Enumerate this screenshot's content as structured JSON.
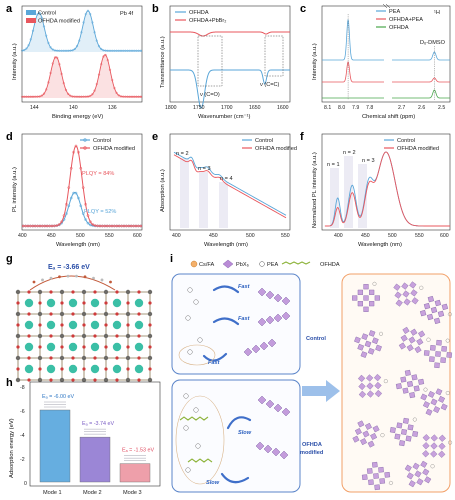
{
  "colors": {
    "control": "#5aa6d8",
    "ofhda": "#e8575e",
    "green": "#49a64b",
    "teal": "#3aa99f",
    "panel_border_blue": "#5b85c9",
    "panel_border_orange": "#f2a068",
    "purple": "#b98bd6",
    "cs": "#3bbfa6",
    "red_atom": "#cf3b3b",
    "pink_bar": "#ee9faa",
    "purple_bar": "#9b86d6",
    "blue_bar": "#66aee0",
    "arrow_blue": "#3f6fc9"
  },
  "panel_letters": {
    "a": "a",
    "b": "b",
    "c": "c",
    "d": "d",
    "e": "e",
    "f": "f",
    "g": "g",
    "h": "h",
    "i": "i"
  },
  "chart_data": [
    {
      "id": "a",
      "type": "line",
      "xlabel": "Binding energy (eV)",
      "ylabel": "Intensity (a.u.)",
      "xlim": [
        145,
        133
      ],
      "x_ticks": [
        144,
        140,
        136
      ],
      "legend": [
        "Control",
        "OFHDA modified"
      ],
      "annotation": "Pb 4f",
      "series": [
        {
          "name": "Control",
          "peaks": [
            143.3,
            138.4
          ]
        },
        {
          "name": "OFHDA modified",
          "peaks": [
            141.6,
            136.7
          ]
        }
      ]
    },
    {
      "id": "b",
      "type": "line",
      "xlabel": "Wavenumber (cm⁻¹)",
      "ylabel": "Transmittance (a.u.)",
      "xlim": [
        1800,
        1600
      ],
      "x_ticks": [
        1800,
        1750,
        1700,
        1650,
        1600
      ],
      "legend": [
        "OFHDA",
        "OFHDA+PbBr₂"
      ],
      "annotations": [
        "ν (C=O)",
        "ν (C=C)"
      ],
      "series": [
        {
          "name": "OFHDA",
          "features": [
            1748,
            1642
          ]
        },
        {
          "name": "OFHDA+PbBr₂",
          "features": [
            1745,
            1640
          ]
        }
      ]
    },
    {
      "id": "c",
      "type": "line",
      "xlabel": "Chemical shift (ppm)",
      "ylabel": "Intensity (a.u.)",
      "x_ticks": [
        "8.1",
        "8.0",
        "7.9",
        "7.8",
        "2.7",
        "2.6",
        "2.5"
      ],
      "legend": [
        "PEA",
        "OFHDA+PEA",
        "OFHDA"
      ],
      "annotations": [
        "¹H",
        "D₆-DMSO"
      ],
      "series": [
        {
          "name": "PEA",
          "peaks": [
            7.96,
            2.55
          ]
        },
        {
          "name": "OFHDA+PEA",
          "peaks": [
            7.96,
            2.55
          ]
        },
        {
          "name": "OFHDA",
          "peaks": [
            2.55
          ]
        }
      ]
    },
    {
      "id": "d",
      "type": "line",
      "xlabel": "Wavelength (nm)",
      "ylabel": "PL intensity (a.u.)",
      "xlim": [
        400,
        600
      ],
      "x_ticks": [
        400,
        450,
        500,
        550,
        600
      ],
      "legend": [
        "Control",
        "OFHDA modified"
      ],
      "annotations": [
        "PLQY = 84%",
        "PLQY = 52%"
      ],
      "series": [
        {
          "name": "Control",
          "peak_x": 488,
          "peak_y": 0.42
        },
        {
          "name": "OFHDA modified",
          "peak_x": 490,
          "peak_y": 1.0
        }
      ]
    },
    {
      "id": "e",
      "type": "line",
      "xlabel": "Wavelength (nm)",
      "ylabel": "Absorption (a.u.)",
      "xlim": [
        400,
        550
      ],
      "x_ticks": [
        400,
        450,
        500,
        550
      ],
      "legend": [
        "Control",
        "OFHDA modified"
      ],
      "annotations": [
        "n = 2",
        "n = 3",
        "n = 4"
      ],
      "series": [
        {
          "name": "Control"
        },
        {
          "name": "OFHDA modified"
        }
      ]
    },
    {
      "id": "f",
      "type": "line",
      "xlabel": "Wavelength (nm)",
      "ylabel": "Normalized PL intensity (a.u.)",
      "xlim": [
        380,
        600
      ],
      "x_ticks": [
        400,
        450,
        500,
        550,
        600
      ],
      "legend": [
        "Control",
        "OFHDA modified"
      ],
      "annotations": [
        "n = 1",
        "n = 2",
        "n = 3"
      ],
      "series": [
        {
          "name": "Control"
        },
        {
          "name": "OFHDA modified"
        }
      ]
    },
    {
      "id": "h",
      "type": "bar",
      "ylabel": "Adsorption energy (eV)",
      "ylim": [
        0,
        -8
      ],
      "y_ticks": [
        "-8",
        "-6",
        "-4",
        "-2",
        "0"
      ],
      "categories": [
        "Mode 1",
        "Mode 2",
        "Mode 3"
      ],
      "values": [
        -6.0,
        -3.74,
        -1.53
      ],
      "labels": [
        "Eₐ = -6.00 eV",
        "Eₐ = -3.74 eV",
        "Eₐ = -1.53 eV"
      ]
    }
  ],
  "g": {
    "label": "Eₐ = -3.66 eV"
  },
  "i": {
    "legend": [
      "Cs/FA",
      "PbX₆",
      "PEA",
      "OFHDA"
    ],
    "top_words": [
      "Fast",
      "Fast",
      "Fast"
    ],
    "bottom_words": [
      "Slow",
      "Slow"
    ],
    "top_label": "Control",
    "bottom_label": "OFHDA modified"
  }
}
